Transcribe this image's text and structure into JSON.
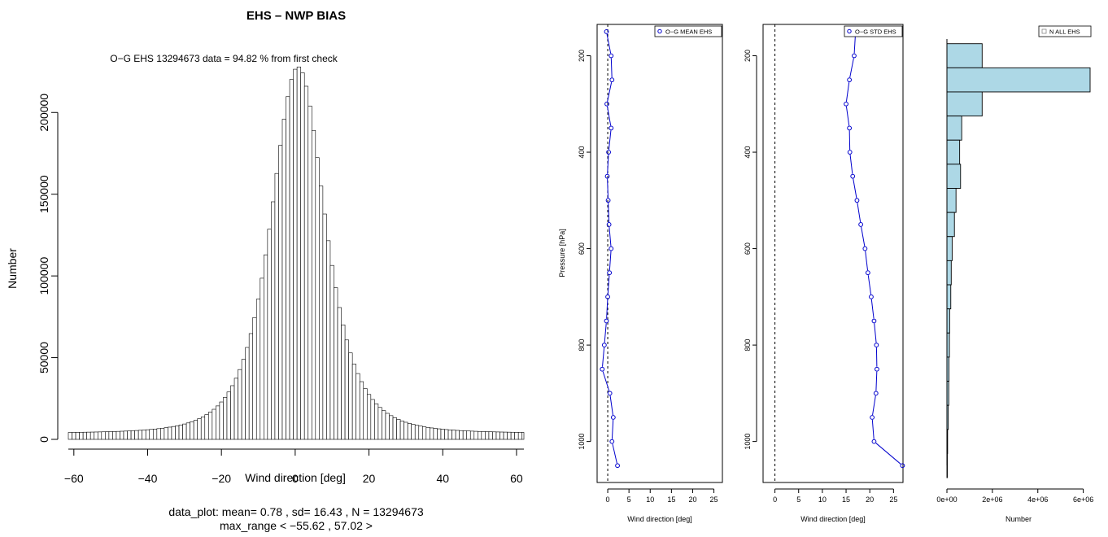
{
  "chart_data": [
    {
      "id": "hist",
      "type": "bar",
      "title": "EHS – NWP BIAS",
      "subtitle": "O−G EHS  13294673 data = 94.82 % from first check",
      "xlabel": "Wind direction [deg]",
      "ylabel": "Number",
      "xlim": [
        -61.5,
        62
      ],
      "ylim": [
        0,
        230000
      ],
      "xticks": [
        -60,
        -40,
        -20,
        0,
        20,
        40,
        60
      ],
      "xtick_labels": [
        "−60",
        "−40",
        "−20",
        "0",
        "20",
        "40",
        "60"
      ],
      "yticks": [
        0,
        50000,
        100000,
        150000,
        200000
      ],
      "ytick_labels": [
        "0",
        "50000",
        "100000",
        "150000",
        "200000"
      ],
      "bin_width": 1,
      "bin_start": -61.5,
      "peak_value": 228000,
      "peak_center": 0.78,
      "peak_scale": 7.7,
      "tail_level": 3800,
      "footer_line1": "data_plot: mean= 0.78 , sd= 16.43 , N = 13294673",
      "footer_line2": "max_range < −55.62 , 57.02 >"
    },
    {
      "id": "mean",
      "type": "line",
      "xlabel": "Wind direction [deg]",
      "ylabel": "Pressure [hPa]",
      "xlim": [
        -2.5,
        27
      ],
      "ylim": [
        1085,
        135
      ],
      "xticks": [
        0,
        5,
        10,
        15,
        20,
        25
      ],
      "yticks": [
        200,
        400,
        600,
        800,
        1000
      ],
      "legend": "O−G MEAN EHS",
      "legend_position": "top-right",
      "reference_line_x": 0,
      "series": [
        {
          "name": "O−G MEAN EHS",
          "pressure": [
            150,
            200,
            250,
            300,
            350,
            400,
            450,
            500,
            550,
            600,
            650,
            700,
            750,
            800,
            850,
            900,
            950,
            1000,
            1050
          ],
          "values": [
            -0.3,
            0.8,
            1.0,
            -0.2,
            0.8,
            0.2,
            -0.1,
            0.1,
            0.3,
            0.8,
            0.4,
            0.0,
            -0.3,
            -0.8,
            -1.3,
            0.5,
            1.3,
            1.0,
            2.3
          ]
        }
      ]
    },
    {
      "id": "std",
      "type": "line",
      "xlabel": "Wind direction [deg]",
      "xlim": [
        -2.5,
        27
      ],
      "ylim": [
        1085,
        135
      ],
      "xticks": [
        0,
        5,
        10,
        15,
        20,
        25
      ],
      "yticks": [
        200,
        400,
        600,
        800,
        1000
      ],
      "legend": "O−G STD EHS",
      "legend_position": "top-right",
      "reference_line_x": 0,
      "series": [
        {
          "name": "O−G STD EHS",
          "pressure": [
            150,
            200,
            250,
            300,
            350,
            400,
            450,
            500,
            550,
            600,
            650,
            700,
            750,
            800,
            850,
            900,
            950,
            1000,
            1050
          ],
          "values": [
            17.0,
            16.7,
            15.7,
            15.0,
            15.7,
            15.8,
            16.4,
            17.3,
            18.1,
            19.0,
            19.6,
            20.3,
            20.9,
            21.4,
            21.5,
            21.3,
            20.5,
            20.9,
            26.9
          ]
        }
      ]
    },
    {
      "id": "count",
      "type": "bar",
      "orientation": "horizontal",
      "xlabel": "Number",
      "xlim": [
        0,
        6300000
      ],
      "ylim": [
        1085,
        135
      ],
      "xticks": [
        0,
        2000000,
        4000000,
        6000000
      ],
      "xtick_labels": [
        "0e+00",
        "2e+06",
        "4e+06",
        "6e+06"
      ],
      "legend": "N ALL EHS",
      "legend_position": "top-right",
      "bar_color": "#add8e6",
      "bins": [
        {
          "from": 175,
          "to": 225,
          "value": 1550000
        },
        {
          "from": 225,
          "to": 275,
          "value": 6300000
        },
        {
          "from": 275,
          "to": 325,
          "value": 1550000
        },
        {
          "from": 325,
          "to": 375,
          "value": 650000
        },
        {
          "from": 375,
          "to": 425,
          "value": 560000
        },
        {
          "from": 425,
          "to": 475,
          "value": 600000
        },
        {
          "from": 475,
          "to": 525,
          "value": 400000
        },
        {
          "from": 525,
          "to": 575,
          "value": 330000
        },
        {
          "from": 575,
          "to": 625,
          "value": 230000
        },
        {
          "from": 625,
          "to": 675,
          "value": 190000
        },
        {
          "from": 675,
          "to": 725,
          "value": 170000
        },
        {
          "from": 725,
          "to": 775,
          "value": 120000
        },
        {
          "from": 775,
          "to": 825,
          "value": 110000
        },
        {
          "from": 825,
          "to": 875,
          "value": 90000
        },
        {
          "from": 875,
          "to": 925,
          "value": 80000
        },
        {
          "from": 925,
          "to": 975,
          "value": 60000
        },
        {
          "from": 975,
          "to": 1025,
          "value": 30000
        },
        {
          "from": 1025,
          "to": 1075,
          "value": 10000
        }
      ]
    }
  ]
}
